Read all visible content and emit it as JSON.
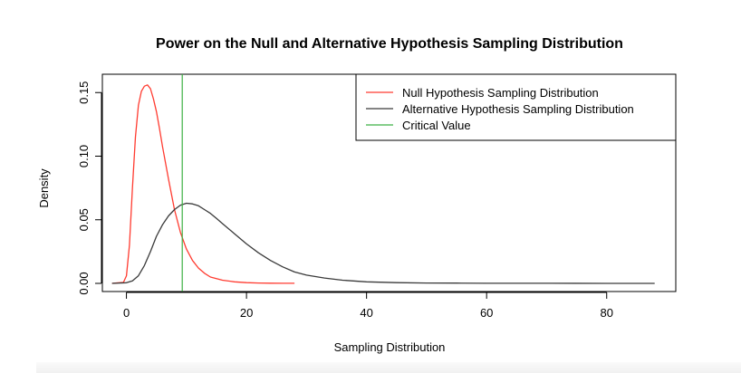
{
  "chart_data": {
    "type": "line",
    "title": "Power on the Null and Alternative Hypothesis Sampling Distribution",
    "xlabel": "Sampling Distribution",
    "ylabel": "Density",
    "xlim": [
      -2.5,
      90
    ],
    "ylim": [
      0,
      0.158
    ],
    "xticks": [
      0,
      20,
      40,
      60,
      80
    ],
    "yticks": [
      0.0,
      0.05,
      0.1,
      0.15
    ],
    "xtick_labels": [
      "0",
      "20",
      "40",
      "60",
      "80"
    ],
    "ytick_labels": [
      "0.00",
      "0.05",
      "0.10",
      "0.15"
    ],
    "grid": false,
    "legend_position": "top-right",
    "series": [
      {
        "name": "Null Hypothesis Sampling Distribution",
        "color": "#ff3b30",
        "x": [
          -2.4,
          -0.5,
          0,
          0.5,
          1,
          1.5,
          2,
          2.5,
          3,
          3.5,
          4,
          4.5,
          5,
          5.5,
          6,
          7,
          8,
          9,
          10,
          11,
          12,
          13,
          14,
          16,
          18,
          20,
          22,
          24,
          26,
          28
        ],
        "y": [
          0.0,
          0.0008,
          0.006,
          0.03,
          0.075,
          0.115,
          0.14,
          0.151,
          0.155,
          0.156,
          0.153,
          0.145,
          0.135,
          0.122,
          0.108,
          0.082,
          0.058,
          0.04,
          0.027,
          0.018,
          0.012,
          0.008,
          0.005,
          0.0025,
          0.0012,
          0.0006,
          0.0003,
          0.00015,
          8e-05,
          4e-05
        ]
      },
      {
        "name": "Alternative Hypothesis Sampling Distribution",
        "color": "#3a3a3a",
        "x": [
          -2.4,
          0,
          1,
          2,
          3,
          4,
          5,
          6,
          7,
          8,
          9,
          10,
          11,
          12,
          13,
          14,
          15,
          16,
          18,
          20,
          22,
          24,
          26,
          28,
          30,
          33,
          36,
          40,
          45,
          50,
          55,
          60,
          70,
          80,
          88
        ],
        "y": [
          0.0,
          0.0005,
          0.002,
          0.006,
          0.014,
          0.025,
          0.037,
          0.046,
          0.053,
          0.058,
          0.0615,
          0.063,
          0.0625,
          0.061,
          0.058,
          0.055,
          0.051,
          0.047,
          0.039,
          0.031,
          0.024,
          0.018,
          0.013,
          0.009,
          0.0065,
          0.0042,
          0.0025,
          0.0012,
          0.0006,
          0.0003,
          0.0002,
          0.0001,
          5e-05,
          2e-05,
          1e-05
        ]
      }
    ],
    "critical_value": {
      "name": "Critical Value",
      "x": 9.3,
      "color": "#3cb043"
    }
  }
}
